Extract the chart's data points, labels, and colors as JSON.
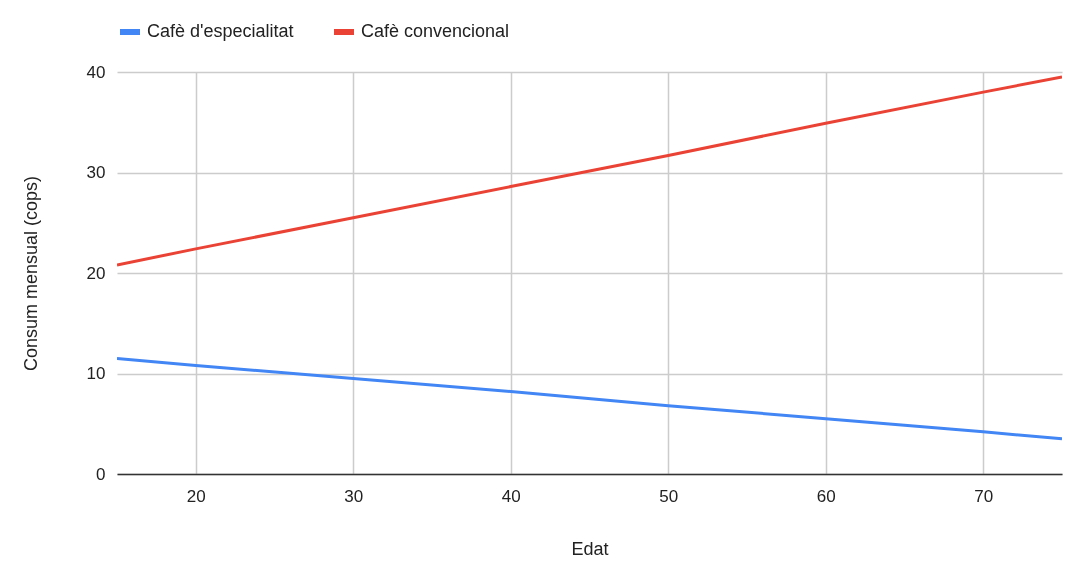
{
  "chart_data": {
    "type": "line",
    "xlabel": "Edat",
    "ylabel": "Consum mensual (cops)",
    "x": [
      15,
      20,
      30,
      40,
      50,
      60,
      70,
      75
    ],
    "series": [
      {
        "name": "Cafè d'especialitat",
        "color": "#4285f4",
        "values": [
          11.5,
          10.8,
          9.5,
          8.2,
          6.8,
          5.5,
          4.2,
          3.5
        ]
      },
      {
        "name": "Cafè convencional",
        "color": "#ea4335",
        "values": [
          20.8,
          22.4,
          25.5,
          28.6,
          31.7,
          34.9,
          38.0,
          39.5
        ]
      }
    ],
    "xlim": [
      15,
      75
    ],
    "xticks": [
      20,
      30,
      40,
      50,
      60,
      70
    ],
    "ylim": [
      0,
      40
    ],
    "yticks": [
      0,
      10,
      20,
      30,
      40
    ],
    "grid": true,
    "legend": "top",
    "marker": "none",
    "line_style": "solid"
  }
}
